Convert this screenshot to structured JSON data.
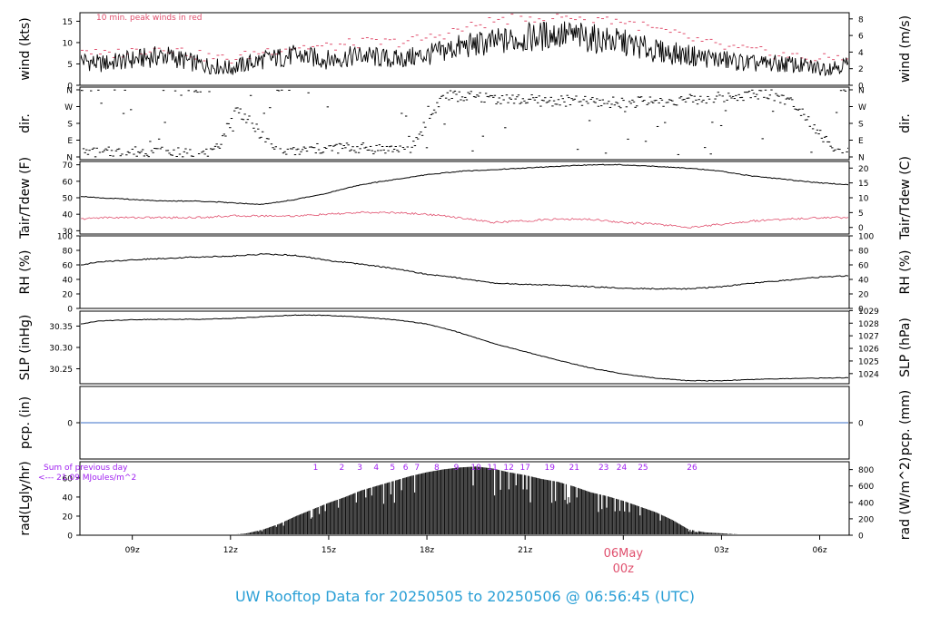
{
  "figure": {
    "title_prefix": "UW Rooftop Data for",
    "start_date": "20250505",
    "to_word": "to",
    "end_date": "20250506",
    "at_time": "@ 06:56:45",
    "tz": "(UTC)",
    "date_marker": "06May",
    "date_marker_hour": "00z",
    "title_color": "#2a9fd6",
    "accent_red": "#e0506e",
    "accent_purple": "#a020f0",
    "pcp_line_color": "#3b6fc9"
  },
  "chart_data": [
    {
      "id": "wind",
      "type": "line",
      "ylabel_left": "wind (kts)",
      "ylabel_right": "wind (m/s)",
      "yticks_left": [
        "0",
        "5",
        "10",
        "15"
      ],
      "yticks_right": [
        "0",
        "2",
        "4",
        "6",
        "8"
      ],
      "ylim": [
        0,
        17
      ],
      "annotation": "10 min. peak winds in red",
      "x": [
        7.4,
        8,
        9,
        10,
        11,
        12,
        13,
        14,
        15,
        16,
        17,
        18,
        19,
        20,
        21,
        22,
        23,
        24,
        25,
        26,
        27,
        28,
        29,
        30,
        30.9
      ],
      "series": [
        {
          "values": [
            6,
            5,
            6,
            7,
            5,
            4,
            6,
            7,
            6,
            7,
            6,
            7,
            9,
            10,
            11,
            12,
            11,
            10,
            8,
            7,
            6,
            5,
            5,
            4,
            5
          ]
        },
        {
          "values": [
            9,
            7,
            8,
            9,
            7,
            6,
            8,
            9,
            9,
            10,
            10,
            11,
            13,
            15,
            16,
            16,
            16,
            15,
            13,
            11,
            9,
            8,
            7,
            6,
            7
          ]
        }
      ]
    },
    {
      "id": "dir",
      "type": "scatter",
      "ylabel_left": "dir.",
      "ylabel_right": "dir.",
      "yticks_left": [
        "N",
        "E",
        "S",
        "W",
        "N"
      ],
      "yticks_right": [
        "N",
        "E",
        "S",
        "W",
        "N"
      ],
      "ylim": [
        0,
        360
      ],
      "x": [
        7.5,
        8.5,
        9.5,
        10.5,
        11.5,
        12.2,
        13.5,
        14.5,
        15.5,
        16.5,
        17.5,
        18.5,
        19.5,
        20.5,
        21.5,
        22.5,
        23.5,
        24.5,
        25.5,
        26.5,
        27.5,
        28.5,
        29.3,
        30.5
      ],
      "values": [
        20,
        25,
        30,
        20,
        15,
        260,
        15,
        40,
        50,
        45,
        40,
        330,
        320,
        310,
        300,
        300,
        290,
        295,
        300,
        310,
        330,
        340,
        280,
        20
      ]
    },
    {
      "id": "temp",
      "type": "line",
      "ylabel_left": "Tair/Tdew (F)",
      "ylabel_right": "Tair/Tdew (C)",
      "yticks_left": [
        "30",
        "40",
        "50",
        "60",
        "70"
      ],
      "yticks_right": [
        "0",
        "5",
        "10",
        "15",
        "20"
      ],
      "ylim": [
        28,
        72
      ],
      "x": [
        7.4,
        8,
        9,
        10,
        11,
        12,
        13,
        14,
        15,
        16,
        17,
        18,
        19,
        20,
        21,
        22,
        23,
        24,
        25,
        26,
        27,
        28,
        29,
        30,
        30.9
      ],
      "series": [
        {
          "values": [
            51,
            50,
            49,
            48,
            48,
            47,
            46,
            49,
            53,
            58,
            61,
            64,
            66,
            67,
            68,
            69,
            70,
            70,
            69,
            68,
            66,
            63,
            61,
            59,
            58
          ]
        },
        {
          "values": [
            37,
            38,
            38,
            38,
            38,
            39,
            39,
            39,
            40,
            41,
            41,
            40,
            38,
            35,
            36,
            37,
            37,
            35,
            34,
            32,
            34,
            36,
            37,
            38,
            38
          ]
        }
      ]
    },
    {
      "id": "rh",
      "type": "line",
      "ylabel_left": "RH (%)",
      "ylabel_right": "RH (%)",
      "yticks_left": [
        "0",
        "20",
        "40",
        "60",
        "80",
        "100"
      ],
      "yticks_right": [
        "0",
        "20",
        "40",
        "60",
        "80",
        "100"
      ],
      "ylim": [
        0,
        100
      ],
      "x": [
        7.4,
        8,
        9,
        10,
        11,
        12,
        13,
        14,
        15,
        16,
        17,
        18,
        19,
        20,
        21,
        22,
        23,
        24,
        25,
        26,
        27,
        28,
        29,
        30,
        30.9
      ],
      "values": [
        60,
        64,
        67,
        69,
        71,
        72,
        75,
        73,
        66,
        61,
        55,
        47,
        42,
        35,
        33,
        32,
        30,
        28,
        27,
        27,
        30,
        35,
        39,
        43,
        45
      ]
    },
    {
      "id": "slp",
      "type": "line",
      "ylabel_left": "SLP (inHg)",
      "ylabel_right": "SLP (hPa)",
      "yticks_left": [
        "30.25",
        "30.30",
        "30.35"
      ],
      "yticks_right": [
        "1024",
        "1025",
        "1026",
        "1027",
        "1028",
        "1029"
      ],
      "ylim": [
        30.215,
        30.385
      ],
      "x": [
        7.4,
        8,
        9,
        10,
        11,
        12,
        13,
        14,
        15,
        16,
        17,
        18,
        19,
        20,
        21,
        22,
        23,
        24,
        25,
        26,
        27,
        28,
        29,
        30,
        30.9
      ],
      "values": [
        30.355,
        30.362,
        30.365,
        30.366,
        30.366,
        30.368,
        30.372,
        30.376,
        30.375,
        30.371,
        30.365,
        30.355,
        30.335,
        30.31,
        30.29,
        30.27,
        30.252,
        30.238,
        30.228,
        30.222,
        30.222,
        30.225,
        30.227,
        30.228,
        30.229
      ]
    },
    {
      "id": "pcp",
      "type": "line",
      "ylabel_left": "pcp. (in)",
      "ylabel_right": "pcp. (mm)",
      "yticks_left": [
        "0"
      ],
      "yticks_right": [
        "0"
      ],
      "ylim": [
        -1,
        1
      ],
      "x": [
        7.4,
        30.9
      ],
      "values": [
        0,
        0
      ]
    },
    {
      "id": "rad",
      "type": "bar",
      "ylabel_left": "rad(Lgly/hr)",
      "ylabel_right": "rad (W/m^2)",
      "yticks_left": [
        "0",
        "20",
        "40",
        "60"
      ],
      "yticks_right": [
        "0",
        "200",
        "400",
        "600",
        "800"
      ],
      "ylim": [
        0,
        77
      ],
      "annotation_1": "Sum of previous day",
      "annotation_2": "<--- 21.09 MJoules/m^2",
      "hour_labels": [
        "1",
        "2",
        "3",
        "4",
        "5",
        "6",
        "7",
        "8",
        "9",
        "10",
        "11",
        "12",
        "17",
        "19",
        "21",
        "23",
        "24",
        "25",
        "26"
      ],
      "hour_label_x": [
        14.6,
        15.4,
        15.95,
        16.45,
        16.95,
        17.35,
        17.7,
        18.3,
        18.9,
        19.5,
        20.0,
        20.5,
        21.0,
        21.75,
        22.5,
        23.4,
        23.95,
        24.6,
        26.1
      ],
      "x": [
        12.2,
        12.5,
        13,
        13.5,
        14,
        14.5,
        15,
        15.5,
        16,
        16.5,
        17,
        17.5,
        18,
        18.5,
        19,
        19.5,
        20,
        20.5,
        21,
        21.5,
        22,
        22.5,
        23,
        23.5,
        24,
        24.5,
        25,
        25.5,
        26,
        26.5,
        27,
        27.5
      ],
      "values": [
        1,
        2,
        6,
        12,
        20,
        27,
        34,
        40,
        47,
        52,
        57,
        62,
        66,
        69,
        71,
        72,
        70,
        66,
        63,
        59,
        56,
        51,
        45,
        41,
        36,
        30,
        24,
        16,
        6,
        3,
        2,
        1
      ]
    }
  ],
  "x_axis": {
    "tick_labels": [
      "09z",
      "12z",
      "15z",
      "18z",
      "21z",
      "03z",
      "06z"
    ],
    "tick_values": [
      9,
      12,
      15,
      18,
      21,
      27,
      30
    ],
    "range": [
      7.4,
      30.9
    ],
    "date_marker_value": 24
  }
}
